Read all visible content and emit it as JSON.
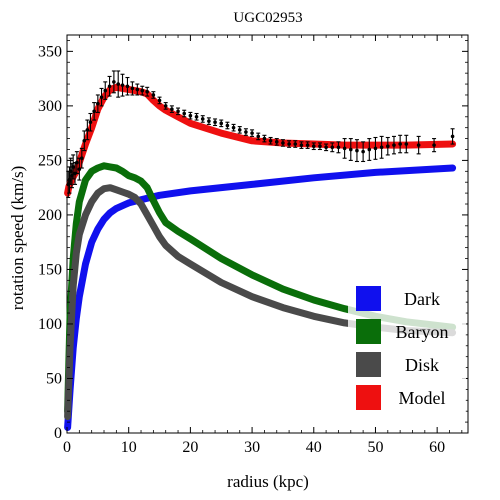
{
  "chart_data": {
    "type": "line",
    "title": "UGC02953",
    "xlabel": "radius (kpc)",
    "ylabel": "rotation speed (km/s)",
    "xlim": [
      0,
      65
    ],
    "ylim": [
      0,
      365
    ],
    "x_ticks": [
      0,
      10,
      20,
      30,
      40,
      50,
      60
    ],
    "y_ticks": [
      0,
      50,
      100,
      150,
      200,
      250,
      300,
      350
    ],
    "x_tick_labels": [
      "0",
      "10",
      "20",
      "30",
      "40",
      "50",
      "60"
    ],
    "y_tick_labels": [
      "0",
      "50",
      "100",
      "150",
      "200",
      "250",
      "300",
      "350"
    ],
    "grid": false,
    "legend_position": "bottom-right",
    "legend": [
      "Dark",
      "Baryon",
      "Disk",
      "Model"
    ],
    "series": [
      {
        "name": "Dark",
        "color": "#1010ee",
        "x": [
          0.1,
          0.5,
          1,
          1.5,
          2,
          3,
          4,
          5,
          6,
          7,
          8,
          10,
          12,
          15,
          20,
          30,
          40,
          50,
          62.5
        ],
        "y": [
          5,
          40,
          78,
          105,
          125,
          155,
          175,
          187,
          196,
          202,
          206,
          211,
          214,
          218,
          222,
          228,
          234,
          239,
          243
        ]
      },
      {
        "name": "Baryon",
        "color": "#0a6e0a",
        "x": [
          0.1,
          0.5,
          1,
          1.5,
          2,
          3,
          4,
          5,
          6,
          7,
          8,
          9,
          10,
          11,
          12,
          13,
          14,
          15,
          16,
          18,
          20,
          25,
          30,
          35,
          40,
          45,
          50,
          55,
          62.5
        ],
        "y": [
          20,
          110,
          160,
          192,
          212,
          232,
          240,
          243,
          245,
          244,
          243,
          240,
          236,
          234,
          231,
          225,
          213,
          202,
          193,
          185,
          178,
          160,
          145,
          132,
          122,
          114,
          107,
          102,
          97
        ]
      },
      {
        "name": "Disk",
        "color": "#4a4a4a",
        "x": [
          0.1,
          0.5,
          1,
          1.5,
          2,
          3,
          4,
          5,
          6,
          7,
          8,
          9,
          10,
          11,
          12,
          13,
          14,
          15,
          16,
          18,
          20,
          25,
          30,
          35,
          40,
          45,
          50,
          55,
          62.5
        ],
        "y": [
          15,
          80,
          135,
          165,
          182,
          200,
          212,
          220,
          224,
          225,
          223,
          221,
          219,
          216,
          210,
          200,
          190,
          180,
          172,
          162,
          155,
          138,
          125,
          115,
          107,
          101,
          97,
          94,
          92
        ]
      },
      {
        "name": "Model",
        "color": "#ee1010",
        "x": [
          0.1,
          0.3,
          0.6,
          1,
          1.5,
          2,
          3,
          4,
          5,
          6,
          7,
          8,
          9,
          10,
          11,
          12,
          13,
          14,
          15,
          16,
          18,
          20,
          25,
          30,
          35,
          40,
          45,
          50,
          55,
          62.5
        ],
        "y": [
          220,
          226,
          230,
          235,
          240,
          248,
          265,
          280,
          297,
          308,
          315,
          317,
          316,
          315,
          314,
          313,
          311,
          305,
          300,
          296,
          290,
          284,
          275,
          268,
          266,
          265,
          264,
          264,
          264,
          265
        ]
      }
    ],
    "observed": {
      "label": "",
      "color": "#000000",
      "x": [
        0.2,
        0.4,
        0.6,
        0.8,
        1.0,
        1.3,
        1.6,
        2.0,
        2.4,
        2.8,
        3.3,
        3.8,
        4.4,
        5.0,
        5.6,
        6.2,
        6.9,
        7.6,
        8.3,
        9.0,
        9.8,
        10.6,
        11.4,
        12.2,
        13.0,
        14.0,
        15.0,
        16.0,
        17.0,
        18.0,
        19.0,
        20.0,
        21.0,
        22.0,
        23.0,
        24.0,
        25.0,
        26.0,
        27.0,
        28.0,
        29.0,
        30.0,
        31.0,
        32.0,
        33.0,
        34.0,
        35.0,
        36.0,
        37.0,
        38.0,
        39.0,
        40.0,
        41.0,
        42.0,
        43.0,
        44.0,
        45.0,
        46.0,
        47.0,
        48.0,
        49.0,
        50.0,
        51.0,
        52.0,
        53.0,
        54.0,
        55.0,
        57.0,
        59.5,
        62.5
      ],
      "y": [
        228,
        232,
        240,
        236,
        244,
        238,
        248,
        242,
        252,
        268,
        278,
        285,
        295,
        302,
        308,
        314,
        318,
        322,
        320,
        319,
        318,
        316,
        315,
        314,
        313,
        310,
        305,
        300,
        297,
        295,
        293,
        291,
        290,
        288,
        286,
        285,
        284,
        282,
        280,
        278,
        276,
        275,
        272,
        270,
        268,
        267,
        266,
        265,
        265,
        264,
        264,
        263,
        263,
        262,
        262,
        262,
        261,
        260,
        259,
        258,
        260,
        261,
        262,
        263,
        264,
        265,
        265,
        264,
        264,
        272
      ],
      "yerr": [
        12,
        12,
        12,
        11,
        11,
        10,
        10,
        10,
        9,
        9,
        9,
        8,
        8,
        8,
        8,
        8,
        9,
        10,
        12,
        10,
        8,
        6,
        5,
        4,
        4,
        3,
        3,
        3,
        3,
        3,
        3,
        3,
        3,
        3,
        3,
        3,
        3,
        3,
        3,
        3,
        3,
        3,
        3,
        3,
        3,
        3,
        3,
        3,
        3,
        3,
        3,
        3,
        3,
        3,
        4,
        5,
        9,
        10,
        10,
        9,
        10,
        10,
        10,
        8,
        8,
        8,
        8,
        8,
        6,
        7
      ]
    }
  }
}
